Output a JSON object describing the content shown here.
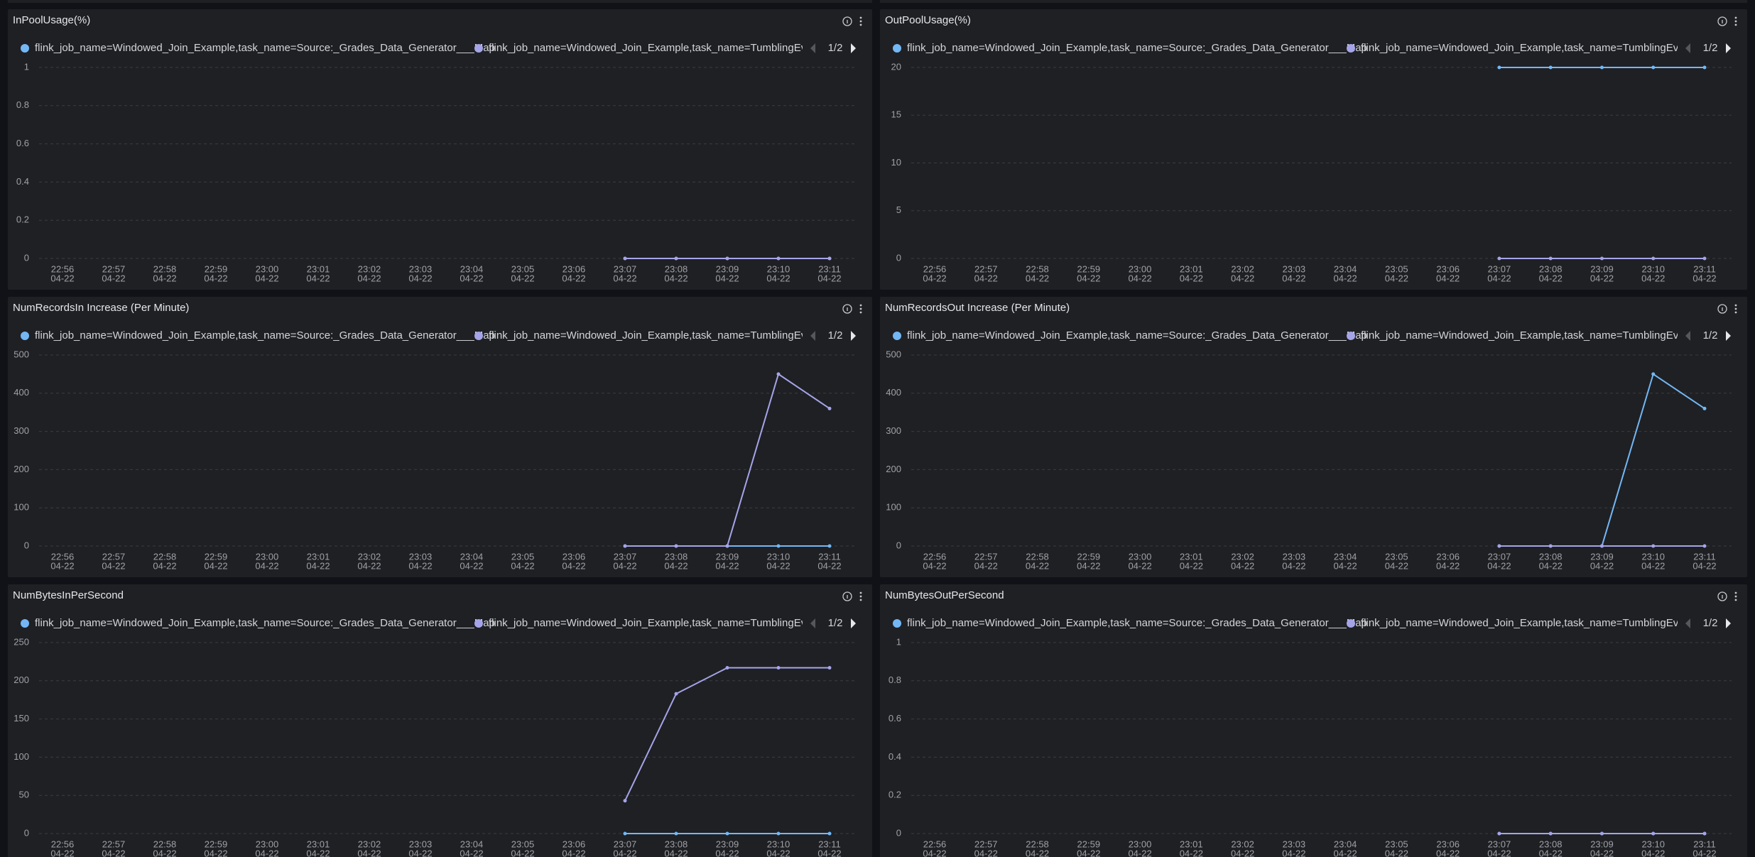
{
  "chart_data": [
    {
      "type": "line",
      "title": "InPoolUsage(%)",
      "legend_page": "1/2",
      "categories": [
        "22:56",
        "22:57",
        "22:58",
        "22:59",
        "23:00",
        "23:01",
        "23:02",
        "23:03",
        "23:04",
        "23:05",
        "23:06",
        "23:07",
        "23:08",
        "23:09",
        "23:10",
        "23:11"
      ],
      "category_sublabels": [
        "04-22",
        "04-22",
        "04-22",
        "04-22",
        "04-22",
        "04-22",
        "04-22",
        "04-22",
        "04-22",
        "04-22",
        "04-22",
        "04-22",
        "04-22",
        "04-22",
        "04-22",
        "04-22"
      ],
      "series": [
        {
          "name": "flink_job_name=Windowed_Join_Example,task_name=Source:_Grades_Data_Generator___Map",
          "color": "#73b8f5",
          "values": [
            null,
            null,
            null,
            null,
            null,
            null,
            null,
            null,
            null,
            null,
            null,
            0,
            0,
            0,
            0,
            0
          ]
        },
        {
          "name": "flink_job_name=Windowed_Join_Example,task_name=TumblingEvent",
          "color": "#a6a4e8",
          "values": [
            null,
            null,
            null,
            null,
            null,
            null,
            null,
            null,
            null,
            null,
            null,
            0,
            0,
            0,
            0,
            0
          ]
        }
      ],
      "ylim": [
        0,
        1
      ],
      "yticks": [
        0,
        0.2,
        0.4,
        0.6,
        0.8,
        1
      ],
      "grid": true
    },
    {
      "type": "line",
      "title": "OutPoolUsage(%)",
      "legend_page": "1/2",
      "categories": [
        "22:56",
        "22:57",
        "22:58",
        "22:59",
        "23:00",
        "23:01",
        "23:02",
        "23:03",
        "23:04",
        "23:05",
        "23:06",
        "23:07",
        "23:08",
        "23:09",
        "23:10",
        "23:11"
      ],
      "category_sublabels": [
        "04-22",
        "04-22",
        "04-22",
        "04-22",
        "04-22",
        "04-22",
        "04-22",
        "04-22",
        "04-22",
        "04-22",
        "04-22",
        "04-22",
        "04-22",
        "04-22",
        "04-22",
        "04-22"
      ],
      "series": [
        {
          "name": "flink_job_name=Windowed_Join_Example,task_name=Source:_Grades_Data_Generator___Map",
          "color": "#73b8f5",
          "values": [
            null,
            null,
            null,
            null,
            null,
            null,
            null,
            null,
            null,
            null,
            null,
            20,
            20,
            20,
            20,
            20
          ]
        },
        {
          "name": "flink_job_name=Windowed_Join_Example,task_name=TumblingEvent",
          "color": "#a6a4e8",
          "values": [
            null,
            null,
            null,
            null,
            null,
            null,
            null,
            null,
            null,
            null,
            null,
            0,
            0,
            0,
            0,
            0
          ]
        }
      ],
      "ylim": [
        0,
        20
      ],
      "yticks": [
        0,
        5,
        10,
        15,
        20
      ],
      "grid": true
    },
    {
      "type": "line",
      "title": "NumRecordsIn Increase (Per Minute)",
      "legend_page": "1/2",
      "categories": [
        "22:56",
        "22:57",
        "22:58",
        "22:59",
        "23:00",
        "23:01",
        "23:02",
        "23:03",
        "23:04",
        "23:05",
        "23:06",
        "23:07",
        "23:08",
        "23:09",
        "23:10",
        "23:11"
      ],
      "category_sublabels": [
        "04-22",
        "04-22",
        "04-22",
        "04-22",
        "04-22",
        "04-22",
        "04-22",
        "04-22",
        "04-22",
        "04-22",
        "04-22",
        "04-22",
        "04-22",
        "04-22",
        "04-22",
        "04-22"
      ],
      "series": [
        {
          "name": "flink_job_name=Windowed_Join_Example,task_name=Source:_Grades_Data_Generator___Map",
          "color": "#73b8f5",
          "values": [
            null,
            null,
            null,
            null,
            null,
            null,
            null,
            null,
            null,
            null,
            null,
            0,
            0,
            0,
            0,
            0
          ]
        },
        {
          "name": "flink_job_name=Windowed_Join_Example,task_name=TumblingEvent",
          "color": "#a6a4e8",
          "values": [
            null,
            null,
            null,
            null,
            null,
            null,
            null,
            null,
            null,
            null,
            null,
            0,
            0,
            0,
            450,
            360
          ]
        }
      ],
      "ylim": [
        0,
        500
      ],
      "yticks": [
        0,
        100,
        200,
        300,
        400,
        500
      ],
      "grid": true
    },
    {
      "type": "line",
      "title": "NumRecordsOut Increase (Per Minute)",
      "legend_page": "1/2",
      "categories": [
        "22:56",
        "22:57",
        "22:58",
        "22:59",
        "23:00",
        "23:01",
        "23:02",
        "23:03",
        "23:04",
        "23:05",
        "23:06",
        "23:07",
        "23:08",
        "23:09",
        "23:10",
        "23:11"
      ],
      "category_sublabels": [
        "04-22",
        "04-22",
        "04-22",
        "04-22",
        "04-22",
        "04-22",
        "04-22",
        "04-22",
        "04-22",
        "04-22",
        "04-22",
        "04-22",
        "04-22",
        "04-22",
        "04-22",
        "04-22"
      ],
      "series": [
        {
          "name": "flink_job_name=Windowed_Join_Example,task_name=Source:_Grades_Data_Generator___Map",
          "color": "#73b8f5",
          "values": [
            null,
            null,
            null,
            null,
            null,
            null,
            null,
            null,
            null,
            null,
            null,
            0,
            0,
            0,
            450,
            360
          ]
        },
        {
          "name": "flink_job_name=Windowed_Join_Example,task_name=TumblingEvent",
          "color": "#a6a4e8",
          "values": [
            null,
            null,
            null,
            null,
            null,
            null,
            null,
            null,
            null,
            null,
            null,
            0,
            0,
            0,
            0,
            0
          ]
        }
      ],
      "ylim": [
        0,
        500
      ],
      "yticks": [
        0,
        100,
        200,
        300,
        400,
        500
      ],
      "grid": true
    },
    {
      "type": "line",
      "title": "NumBytesInPerSecond",
      "legend_page": "1/2",
      "categories": [
        "22:56",
        "22:57",
        "22:58",
        "22:59",
        "23:00",
        "23:01",
        "23:02",
        "23:03",
        "23:04",
        "23:05",
        "23:06",
        "23:07",
        "23:08",
        "23:09",
        "23:10",
        "23:11"
      ],
      "category_sublabels": [
        "04-22",
        "04-22",
        "04-22",
        "04-22",
        "04-22",
        "04-22",
        "04-22",
        "04-22",
        "04-22",
        "04-22",
        "04-22",
        "04-22",
        "04-22",
        "04-22",
        "04-22",
        "04-22"
      ],
      "series": [
        {
          "name": "flink_job_name=Windowed_Join_Example,task_name=Source:_Grades_Data_Generator___Map",
          "color": "#73b8f5",
          "values": [
            null,
            null,
            null,
            null,
            null,
            null,
            null,
            null,
            null,
            null,
            null,
            0,
            0,
            0,
            0,
            0
          ]
        },
        {
          "name": "flink_job_name=Windowed_Join_Example,task_name=TumblingEvent",
          "color": "#a6a4e8",
          "values": [
            null,
            null,
            null,
            null,
            null,
            null,
            null,
            null,
            null,
            null,
            null,
            43,
            183,
            217,
            217,
            217
          ]
        }
      ],
      "ylim": [
        0,
        250
      ],
      "yticks": [
        0,
        50,
        100,
        150,
        200,
        250
      ],
      "grid": true
    },
    {
      "type": "line",
      "title": "NumBytesOutPerSecond",
      "legend_page": "1/2",
      "categories": [
        "22:56",
        "22:57",
        "22:58",
        "22:59",
        "23:00",
        "23:01",
        "23:02",
        "23:03",
        "23:04",
        "23:05",
        "23:06",
        "23:07",
        "23:08",
        "23:09",
        "23:10",
        "23:11"
      ],
      "category_sublabels": [
        "04-22",
        "04-22",
        "04-22",
        "04-22",
        "04-22",
        "04-22",
        "04-22",
        "04-22",
        "04-22",
        "04-22",
        "04-22",
        "04-22",
        "04-22",
        "04-22",
        "04-22",
        "04-22"
      ],
      "series": [
        {
          "name": "flink_job_name=Windowed_Join_Example,task_name=Source:_Grades_Data_Generator___Map",
          "color": "#73b8f5",
          "values": [
            null,
            null,
            null,
            null,
            null,
            null,
            null,
            null,
            null,
            null,
            null,
            0,
            0,
            0,
            0,
            0
          ]
        },
        {
          "name": "flink_job_name=Windowed_Join_Example,task_name=TumblingEvent",
          "color": "#a6a4e8",
          "values": [
            null,
            null,
            null,
            null,
            null,
            null,
            null,
            null,
            null,
            null,
            null,
            0,
            0,
            0,
            0,
            0
          ]
        }
      ],
      "ylim": [
        0,
        1
      ],
      "yticks": [
        0,
        0.2,
        0.4,
        0.6,
        0.8,
        1
      ],
      "grid": true
    }
  ]
}
